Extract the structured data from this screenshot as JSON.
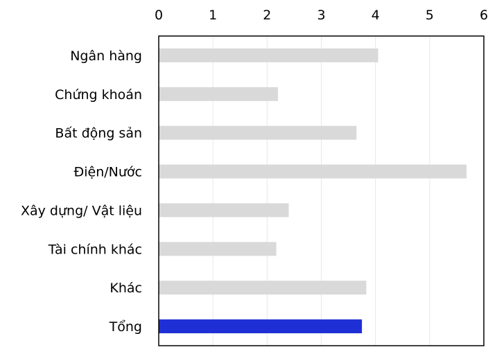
{
  "chart_data": {
    "type": "bar",
    "orientation": "horizontal",
    "categories": [
      "Ngân hàng",
      "Chứng khoán",
      "Bất động sản",
      "Điện/Nước",
      "Xây dựng/ Vật liệu",
      "Tài chính khác",
      "Khác",
      "Tổng"
    ],
    "values": [
      4.05,
      2.2,
      3.65,
      5.68,
      2.4,
      2.17,
      3.83,
      3.75
    ],
    "xlim": [
      0,
      6
    ],
    "x_ticks": [
      0,
      1,
      2,
      3,
      4,
      5,
      6
    ],
    "x_tick_labels": [
      "0",
      "1",
      "2",
      "3",
      "4",
      "5",
      "6"
    ],
    "x_axis_position": "top",
    "grid": true,
    "title": "",
    "xlabel": "",
    "ylabel": "",
    "colors": {
      "bar_default": "#d9d9d9",
      "bar_highlight": "#1f2fd6",
      "grid": "#e7e7e7",
      "frame": "#000000"
    },
    "highlight_category": "Tổng"
  }
}
